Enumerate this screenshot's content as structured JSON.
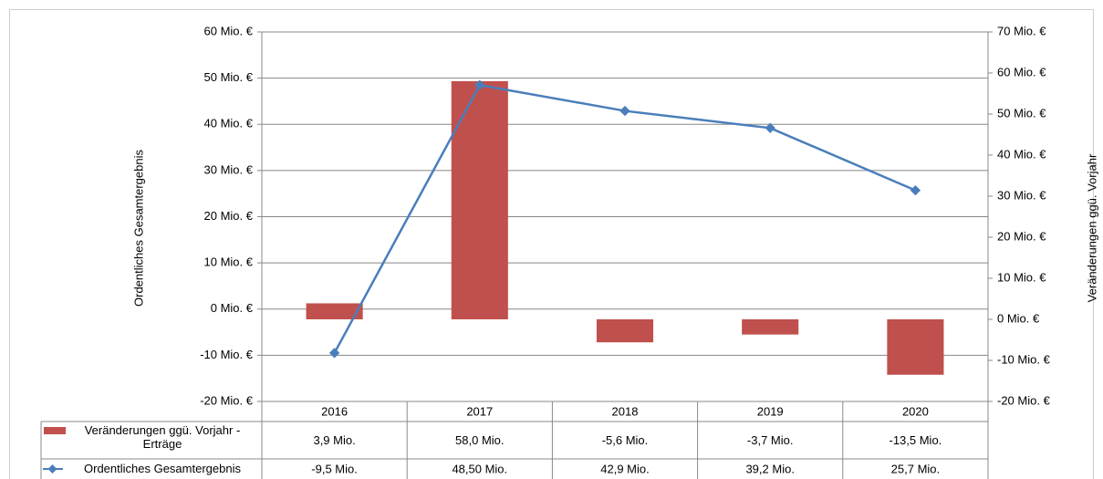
{
  "chart_data": {
    "type": "bar_line",
    "y_label": "Ordentliches Gesamtergebnis",
    "y2_label": "Veränderungen ggü. Vorjahr",
    "categories": [
      "2016",
      "2017",
      "2018",
      "2019",
      "2020"
    ],
    "ylim": [
      -20,
      60
    ],
    "yticks": [
      {
        "value": -20,
        "label": "-20 Mio. €"
      },
      {
        "value": -10,
        "label": "-10 Mio. €"
      },
      {
        "value": 0,
        "label": "0 Mio. €"
      },
      {
        "value": 10,
        "label": "10 Mio. €"
      },
      {
        "value": 20,
        "label": "20 Mio. €"
      },
      {
        "value": 30,
        "label": "30 Mio. €"
      },
      {
        "value": 40,
        "label": "40 Mio. €"
      },
      {
        "value": 50,
        "label": "50 Mio. €"
      },
      {
        "value": 60,
        "label": "60 Mio. €"
      }
    ],
    "y2lim": [
      -20,
      70
    ],
    "y2ticks": [
      {
        "value": -20,
        "label": "-20 Mio. €"
      },
      {
        "value": -10,
        "label": "-10 Mio. €"
      },
      {
        "value": 0,
        "label": "0 Mio. €"
      },
      {
        "value": 10,
        "label": "10 Mio. €"
      },
      {
        "value": 20,
        "label": "20 Mio. €"
      },
      {
        "value": 30,
        "label": "30 Mio. €"
      },
      {
        "value": 40,
        "label": "40 Mio. €"
      },
      {
        "value": 50,
        "label": "50 Mio. €"
      },
      {
        "value": 60,
        "label": "60 Mio. €"
      },
      {
        "value": 70,
        "label": "70 Mio. €"
      }
    ],
    "grid": true,
    "series": [
      {
        "name": "Veränderungen ggü. Vorjahr - Erträge",
        "type": "bar",
        "axis": "y2",
        "color": "#c0504d",
        "values": [
          3.9,
          58.0,
          -5.6,
          -3.7,
          -13.5
        ],
        "value_labels": [
          "3,9 Mio.",
          "58,0 Mio.",
          "-5,6 Mio.",
          "-3,7 Mio.",
          "-13,5 Mio."
        ]
      },
      {
        "name": "Ordentliches Gesamtergebnis",
        "type": "line",
        "axis": "y",
        "color": "#4a7ebb",
        "values": [
          -9.5,
          48.5,
          42.9,
          39.2,
          25.7
        ],
        "value_labels": [
          "-9,5 Mio.",
          "48,50 Mio.",
          "42,9 Mio.",
          "39,2 Mio.",
          "25,7 Mio."
        ]
      }
    ]
  }
}
